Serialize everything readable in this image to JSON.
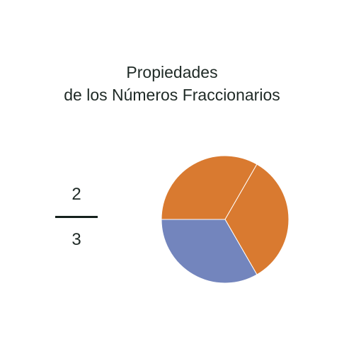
{
  "title": {
    "line1": "Propiedades",
    "line2": "de los Números Fraccionarios"
  },
  "fraction": {
    "numerator": "2",
    "denominator": "3"
  },
  "pie": {
    "slices": 3,
    "filled": 2,
    "filled_color": "#d97a30",
    "empty_color": "#7385bd",
    "divider_color": "#ffffff"
  }
}
